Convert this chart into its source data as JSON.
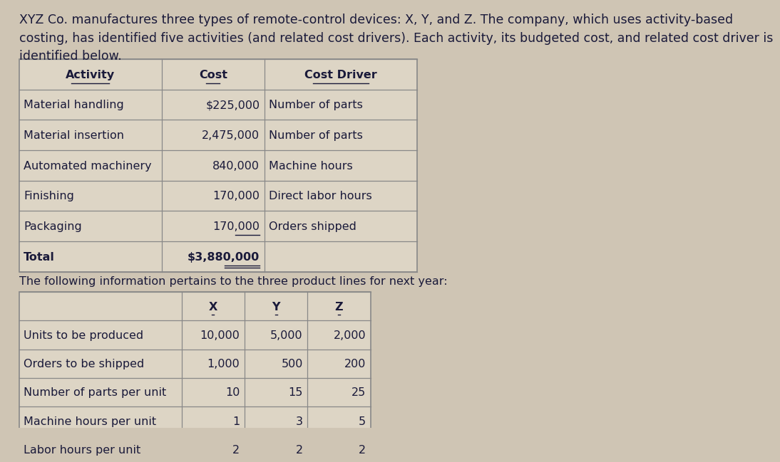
{
  "intro_text": "XYZ Co. manufactures three types of remote-control devices: X, Y, and Z. The company, which uses activity-based\ncosting, has identified five activities (and related cost drivers). Each activity, its budgeted cost, and related cost driver is\nidentified below.",
  "table1_headers": [
    "Activity",
    "Cost",
    "Cost Driver"
  ],
  "table1_col_align": [
    "center",
    "center",
    "center"
  ],
  "table1_data_align": [
    "left",
    "right",
    "left"
  ],
  "table1_rows": [
    [
      "Material handling",
      "$225,000",
      "Number of parts"
    ],
    [
      "Material insertion",
      "2,475,000",
      "Number of parts"
    ],
    [
      "Automated machinery",
      "840,000",
      "Machine hours"
    ],
    [
      "Finishing",
      "170,000",
      "Direct labor hours"
    ],
    [
      "Packaging",
      "170,000",
      "Orders shipped"
    ],
    [
      "Total",
      "$3,880,000",
      ""
    ]
  ],
  "table1_underline_rows": [
    4,
    5
  ],
  "table1_underline_cols": [
    1,
    1
  ],
  "separator_text": "The following information pertains to the three product lines for next year:",
  "table2_headers": [
    "",
    "X",
    "Y",
    "Z"
  ],
  "table2_col_align": [
    "left",
    "center",
    "center",
    "center"
  ],
  "table2_data_align": [
    "left",
    "right",
    "right",
    "right"
  ],
  "table2_rows": [
    [
      "Units to be produced",
      "10,000",
      "5,000",
      "2,000"
    ],
    [
      "Orders to be shipped",
      "1,000",
      "500",
      "200"
    ],
    [
      "Number of parts per unit",
      "10",
      "15",
      "25"
    ],
    [
      "Machine hours per unit",
      "1",
      "3",
      "5"
    ],
    [
      "Labor hours per unit",
      "2",
      "2",
      "2"
    ]
  ],
  "bg_color": "#cfc5b4",
  "table_bg": "#ddd5c5",
  "border_color": "#888888",
  "text_color": "#1a1a3a",
  "font_size": 11.5,
  "intro_font_size": 12.5
}
